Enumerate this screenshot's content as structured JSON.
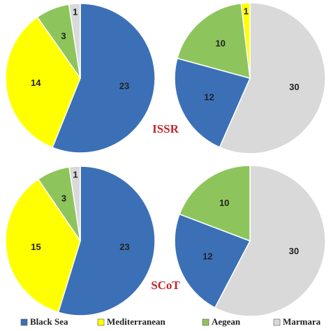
{
  "chart_data": [
    {
      "type": "pie",
      "categories": [
        "Black Sea",
        "Mediterranean",
        "Aegean",
        "Marmara"
      ],
      "values": [
        23,
        14,
        3,
        1
      ]
    },
    {
      "type": "pie",
      "categories": [
        "Marmara",
        "Black Sea",
        "Aegean",
        "Mediterranean"
      ],
      "values": [
        30,
        12,
        10,
        1
      ]
    },
    {
      "type": "pie",
      "categories": [
        "Black Sea",
        "Mediterranean",
        "Aegean",
        "Marmara"
      ],
      "values": [
        23,
        15,
        3,
        1
      ]
    },
    {
      "type": "pie",
      "categories": [
        "Marmara",
        "Black Sea",
        "Aegean"
      ],
      "values": [
        30,
        12,
        10
      ]
    }
  ],
  "row_labels": [
    "ISSR",
    "SCoT"
  ],
  "legend": [
    {
      "name": "Black Sea",
      "color": "#3b70b7"
    },
    {
      "name": "Mediterranean",
      "color": "#ffff00"
    },
    {
      "name": "Aegean",
      "color": "#8dc55c"
    },
    {
      "name": "Marmara",
      "color": "#d9d9d9"
    }
  ]
}
